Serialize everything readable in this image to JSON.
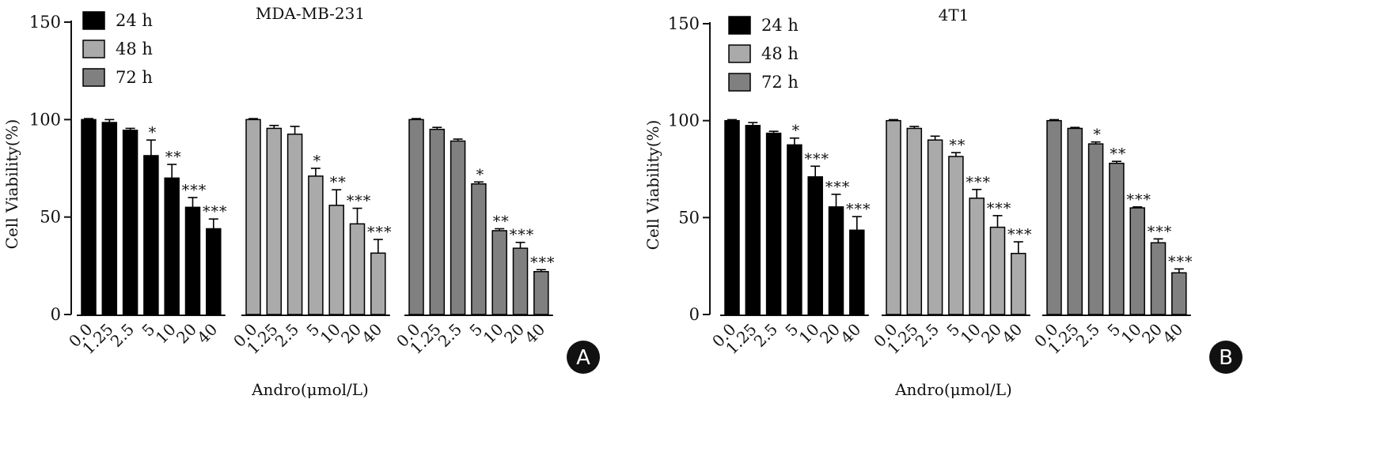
{
  "chart_data": [
    {
      "type": "bar",
      "panel_label": "A",
      "title": "MDA-MB-231",
      "ylabel": "Cell Viability(%)",
      "xlabel": "Andro(μmol/L)",
      "ylim": [
        0,
        150
      ],
      "yticks": [
        0,
        50,
        100,
        150
      ],
      "categories": [
        "0.0",
        "1.25",
        "2.5",
        "5",
        "10",
        "20",
        "40"
      ],
      "legend_position": "top-left",
      "series": [
        {
          "name": "24 h",
          "color": "#000000",
          "values": [
            100,
            98.5,
            94.5,
            81.5,
            70,
            55,
            44
          ],
          "errors": [
            0.5,
            1.5,
            1.0,
            8,
            7,
            5,
            5
          ],
          "significance": [
            "",
            "",
            "",
            "*",
            "**",
            "***",
            "***"
          ]
        },
        {
          "name": "48 h",
          "color": "#aaaaaa",
          "values": [
            100,
            95.5,
            92.5,
            71,
            56,
            46.5,
            31.5
          ],
          "errors": [
            0.5,
            1.5,
            4,
            4,
            8,
            8,
            7
          ],
          "significance": [
            "",
            "",
            "",
            "*",
            "**",
            "***",
            "***"
          ]
        },
        {
          "name": "72 h",
          "color": "#808080",
          "values": [
            100,
            95,
            89,
            67,
            43,
            34,
            22
          ],
          "errors": [
            0.5,
            1.0,
            1.0,
            1.0,
            1.0,
            3,
            1.0
          ],
          "significance": [
            "",
            "",
            "",
            "*",
            "**",
            "***",
            "***"
          ]
        }
      ]
    },
    {
      "type": "bar",
      "panel_label": "B",
      "title": "4T1",
      "ylabel": "Cell Viability(%)",
      "xlabel": "Andro(μmol/L)",
      "ylim": [
        0,
        150
      ],
      "yticks": [
        0,
        50,
        100,
        150
      ],
      "categories": [
        "0.0",
        "1.25",
        "2.5",
        "5",
        "10",
        "20",
        "40"
      ],
      "legend_position": "top-left",
      "series": [
        {
          "name": "24 h",
          "color": "#000000",
          "values": [
            100,
            97.5,
            93.5,
            87.5,
            71,
            55.5,
            43.5
          ],
          "errors": [
            0.5,
            1.5,
            1.0,
            3.5,
            5.5,
            6.5,
            7
          ],
          "significance": [
            "",
            "",
            "",
            "*",
            "***",
            "***",
            "***"
          ]
        },
        {
          "name": "48 h",
          "color": "#aaaaaa",
          "values": [
            100,
            96,
            90,
            81.5,
            60,
            45,
            31.5
          ],
          "errors": [
            0.5,
            1.0,
            2,
            2,
            4.5,
            6,
            6
          ],
          "significance": [
            "",
            "",
            "",
            "**",
            "***",
            "***",
            "***"
          ]
        },
        {
          "name": "72 h",
          "color": "#808080",
          "values": [
            100,
            96,
            88,
            78,
            55,
            37,
            21.5
          ],
          "errors": [
            0.5,
            0.5,
            1.0,
            1.0,
            0.5,
            2,
            2
          ],
          "significance": [
            "",
            "",
            "*",
            "**",
            "***",
            "***",
            "***"
          ]
        }
      ]
    }
  ]
}
